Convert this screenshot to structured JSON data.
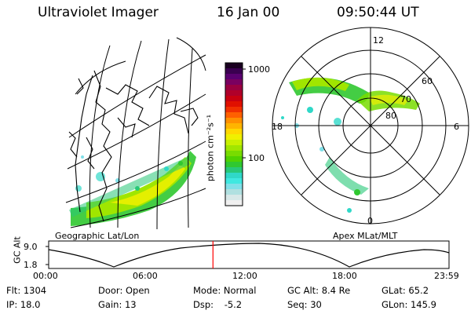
{
  "header": {
    "instrument": "Ultraviolet Imager",
    "date": "16 Jan 00",
    "time": "09:50:44 UT"
  },
  "colorbar": {
    "unit_label": "photon cm⁻²s⁻¹",
    "ticks": [
      "1000",
      "100"
    ],
    "colors": [
      "#1a0020",
      "#3a0050",
      "#5a0070",
      "#7a0060",
      "#9a0040",
      "#b0002a",
      "#c80010",
      "#e01000",
      "#f03000",
      "#ff6000",
      "#ff9000",
      "#ffb400",
      "#ffd800",
      "#f0f000",
      "#c8f000",
      "#a0e600",
      "#78dc00",
      "#50d200",
      "#30c830",
      "#28c878",
      "#30d8c8",
      "#40e8e0",
      "#80e0e8",
      "#b0e0e0",
      "#d8e8e8",
      "#f0f0f0"
    ]
  },
  "left_panel": {
    "label": "Geographic Lat/Lon"
  },
  "right_panel": {
    "label": "Apex MLat/MLT",
    "lat_labels": [
      "60",
      "70",
      "80"
    ],
    "mlt_labels": [
      "12",
      "18",
      "6",
      "0"
    ]
  },
  "altitude_plot": {
    "ylabel": "GC Alt",
    "ytick_top": "9.0",
    "ytick_bottom": "1.8",
    "xticks": [
      "00:00",
      "06:00",
      "12:00",
      "18:00",
      "23:59"
    ],
    "current_time_marker_hours": 9.85,
    "line_color": "#000000",
    "marker_color": "#ff0000"
  },
  "status": {
    "row1": [
      {
        "label": "Flt:",
        "value": "1304"
      },
      {
        "label": "Door:",
        "value": "Open"
      },
      {
        "label": "Mode:",
        "value": "Normal"
      },
      {
        "label": "GC Alt:",
        "value": "8.4 Re"
      },
      {
        "label": "GLat:",
        "value": "65.2"
      }
    ],
    "row2": [
      {
        "label": "IP:",
        "value": "18.0"
      },
      {
        "label": "Gain:",
        "value": "13"
      },
      {
        "label": "Dsp:",
        "value": "-5.2"
      },
      {
        "label": "Seq:",
        "value": "30"
      },
      {
        "label": "GLon:",
        "value": "145.9"
      }
    ]
  }
}
